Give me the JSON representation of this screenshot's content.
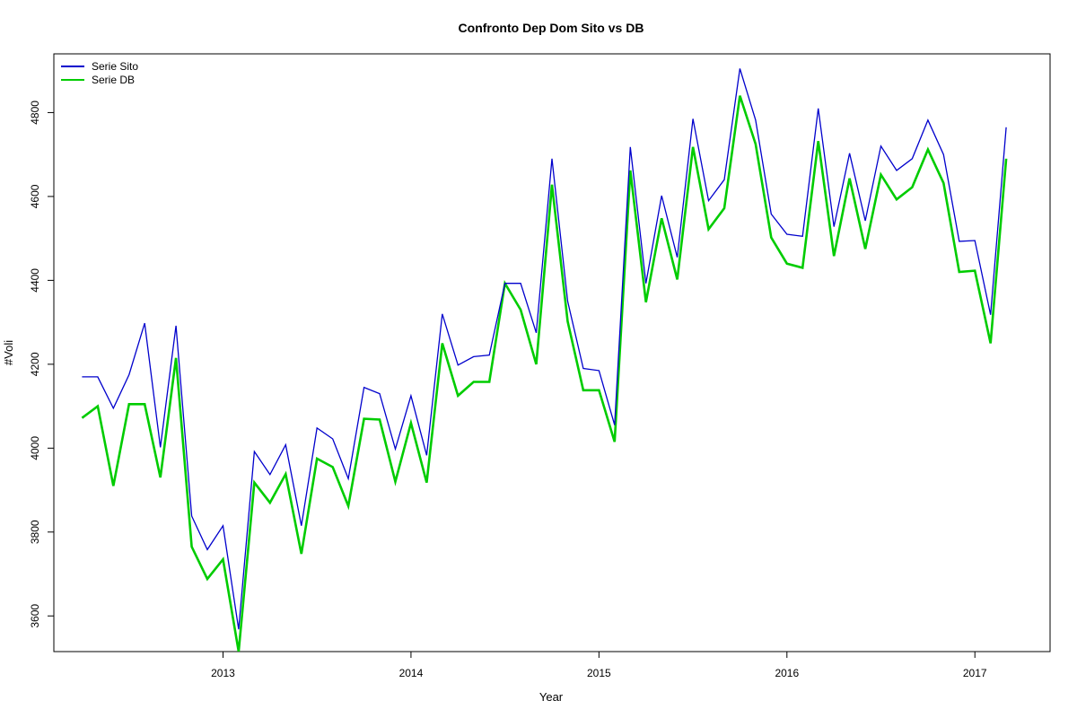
{
  "chart_data": {
    "type": "line",
    "title": "Confronto Dep Dom Sito vs DB",
    "xlabel": "Year",
    "ylabel": "#Voli",
    "x_ticks": [
      "2013",
      "2014",
      "2015",
      "2016",
      "2017"
    ],
    "y_ticks": [
      "3600",
      "3800",
      "4000",
      "4200",
      "4400",
      "4600",
      "4800"
    ],
    "xlim": [
      2012.1,
      2017.4
    ],
    "ylim": [
      3515,
      4940
    ],
    "grid": false,
    "legend_position": "top-left",
    "x_start": "2012-04",
    "x_step": "month",
    "series": [
      {
        "name": "Serie Sito",
        "color": "#0000cc",
        "values": [
          4170,
          4170,
          4095,
          4175,
          4298,
          4002,
          4292,
          3838,
          3758,
          3815,
          3568,
          3992,
          3937,
          4008,
          3815,
          4048,
          4022,
          3927,
          4145,
          4130,
          3998,
          4125,
          3983,
          4320,
          4198,
          4218,
          4222,
          4393,
          4393,
          4275,
          4690,
          4350,
          4190,
          4185,
          4055,
          4718,
          4393,
          4602,
          4455,
          4785,
          4590,
          4640,
          4905,
          4782,
          4558,
          4510,
          4505,
          4810,
          4528,
          4703,
          4542,
          4720,
          4662,
          4690,
          4782,
          4700,
          4493,
          4495,
          4318,
          4765
        ]
      },
      {
        "name": "Serie DB",
        "color": "#00cc00",
        "values": [
          4072,
          4100,
          3910,
          4105,
          4105,
          3930,
          4215,
          3765,
          3688,
          3735,
          3515,
          3918,
          3870,
          3938,
          3748,
          3975,
          3955,
          3862,
          4070,
          4068,
          3920,
          4060,
          3918,
          4250,
          4125,
          4158,
          4158,
          4393,
          4330,
          4200,
          4628,
          4302,
          4138,
          4138,
          4015,
          4662,
          4348,
          4548,
          4402,
          4718,
          4522,
          4572,
          4840,
          4725,
          4502,
          4440,
          4430,
          4732,
          4458,
          4643,
          4475,
          4652,
          4593,
          4622,
          4712,
          4632,
          4420,
          4423,
          4250,
          4690
        ]
      }
    ]
  }
}
